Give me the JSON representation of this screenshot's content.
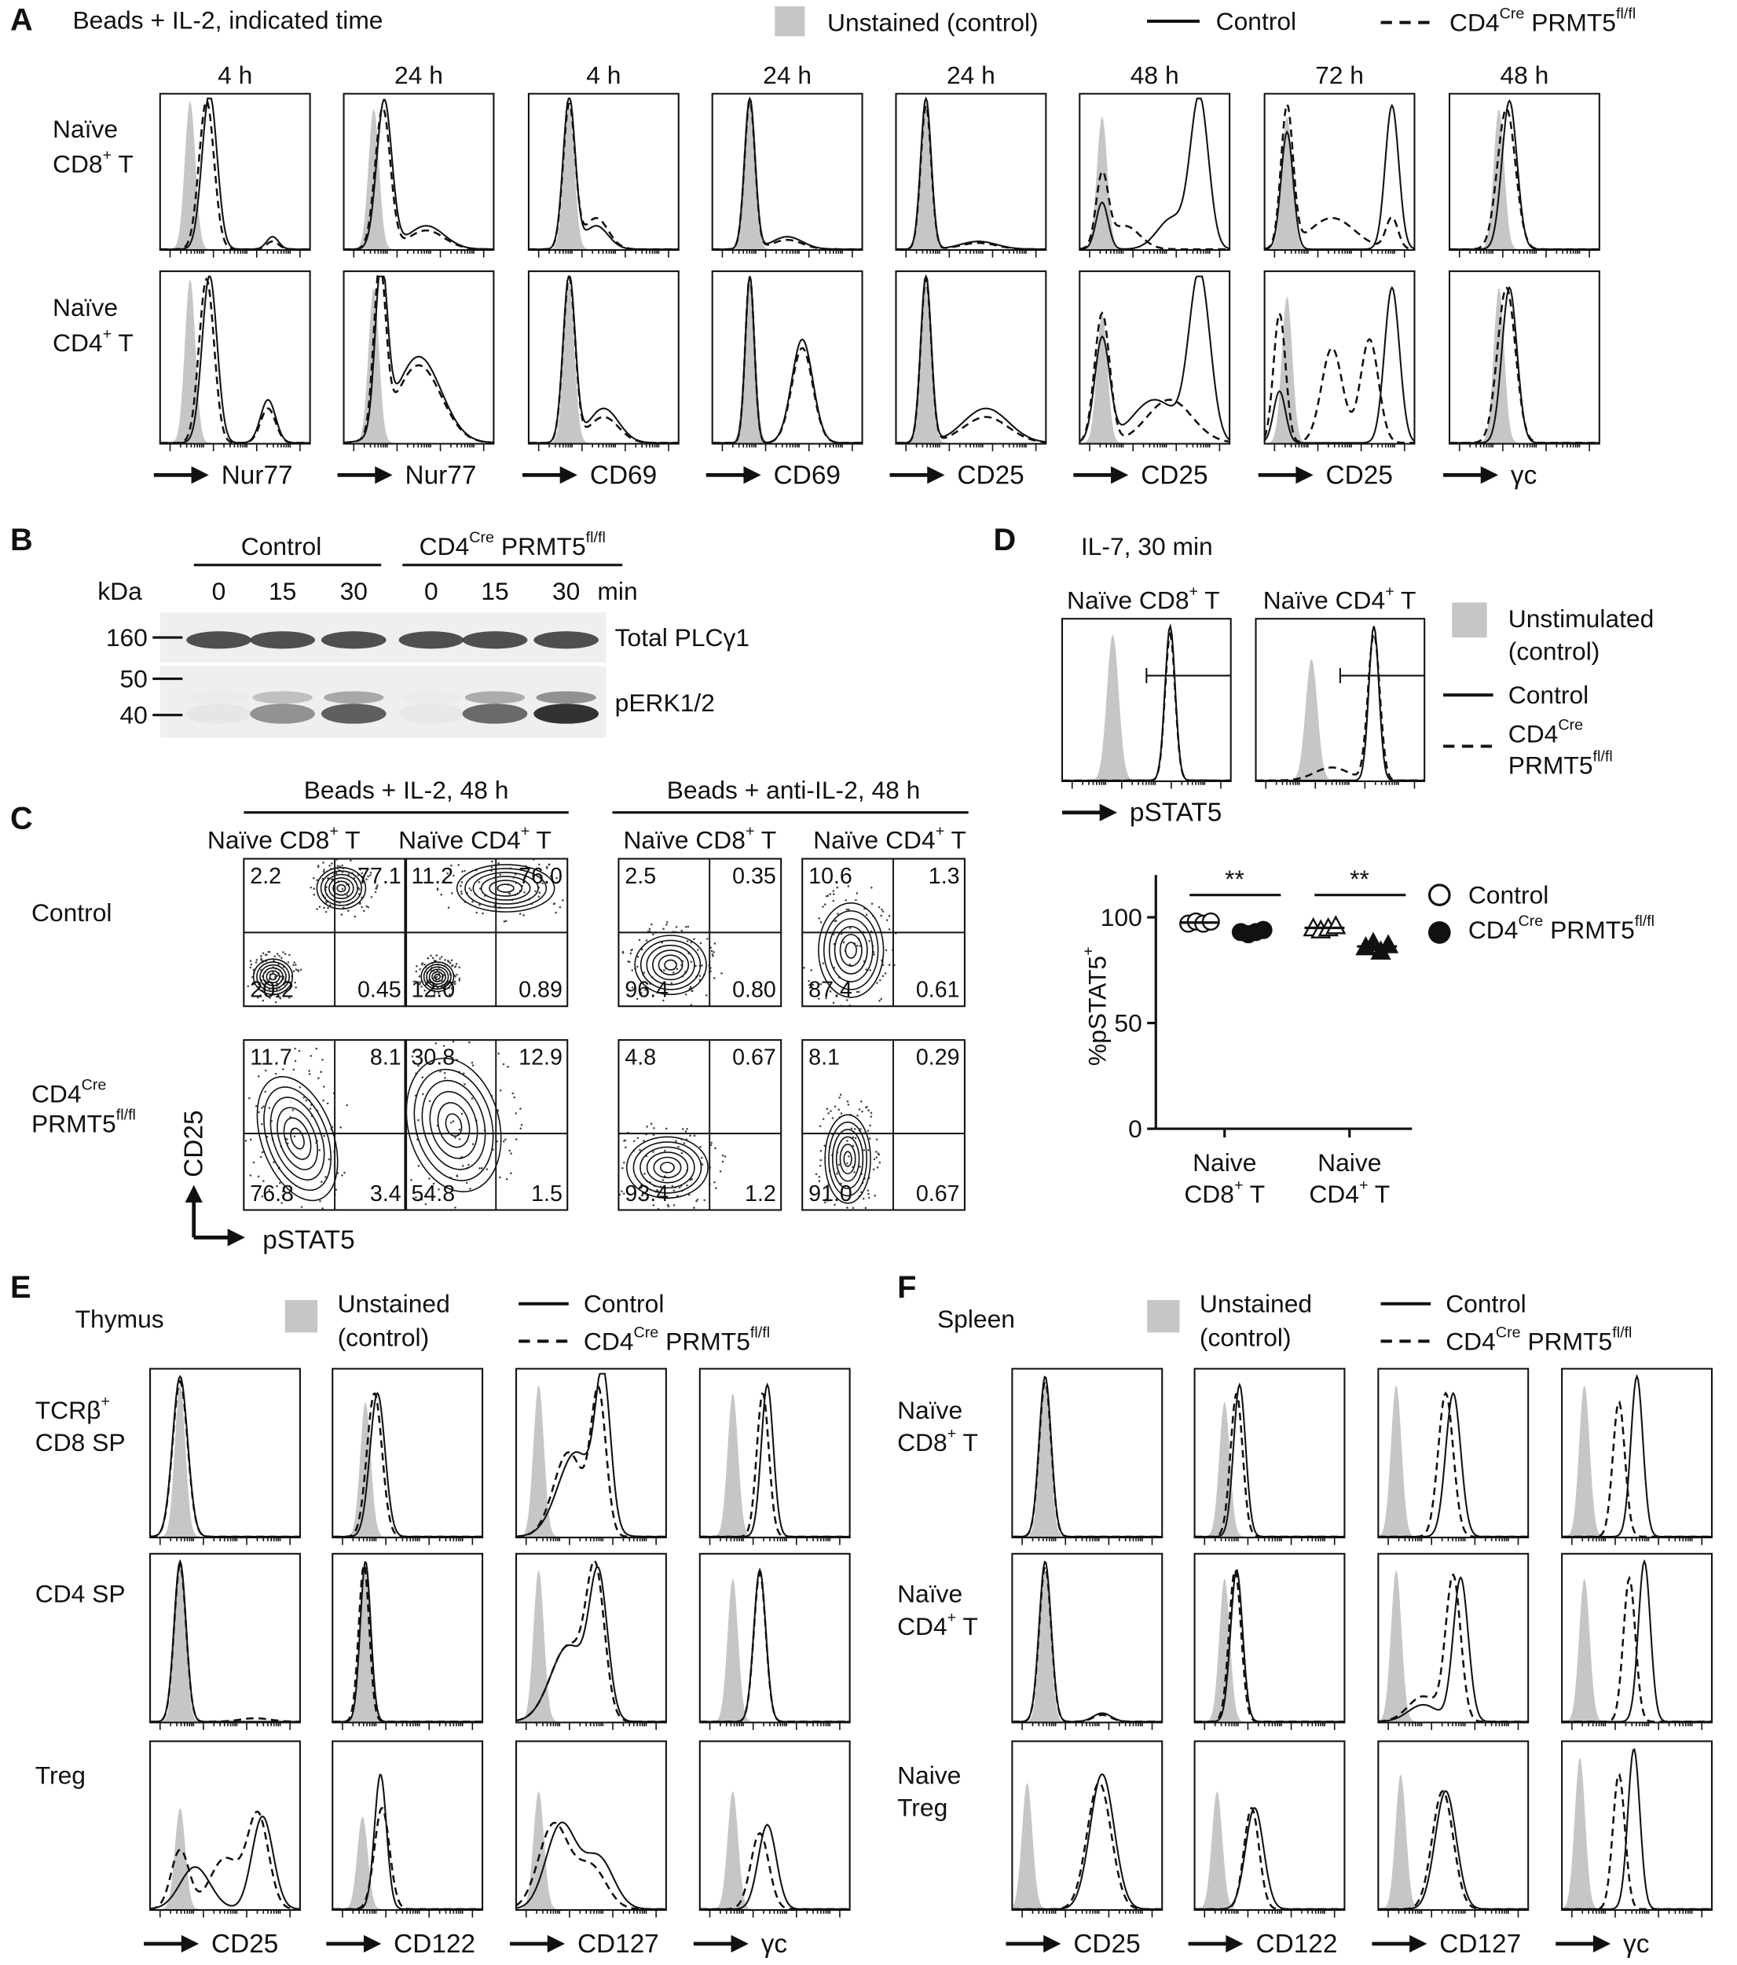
{
  "panel_a": {
    "label": "A",
    "title": "Beads + IL-2, indicated time",
    "legend": {
      "unstained": "Unstained (control)",
      "control": "Control",
      "knockout": [
        "CD4",
        "Cre",
        " PRMT5",
        "fl/fl"
      ]
    },
    "rows": [
      [
        [
          "Naïve"
        ],
        [
          "CD8",
          "+",
          " T"
        ]
      ],
      [
        [
          "Naïve"
        ],
        [
          "CD4",
          "+",
          " T"
        ]
      ]
    ],
    "columns": [
      {
        "time": "4 h",
        "marker": "Nur77"
      },
      {
        "time": "24 h",
        "marker": "Nur77"
      },
      {
        "time": "4 h",
        "marker": "CD69"
      },
      {
        "time": "24 h",
        "marker": "CD69"
      },
      {
        "time": "24 h",
        "marker": "CD25"
      },
      {
        "time": "48 h",
        "marker": "CD25"
      },
      {
        "time": "72 h",
        "marker": "CD25"
      },
      {
        "time": "48 h",
        "marker": "γc"
      }
    ]
  },
  "panel_b": {
    "label": "B",
    "groups": [
      "Control",
      [
        "CD4",
        "Cre",
        " PRMT5",
        "fl/fl"
      ]
    ],
    "unit": "kDa",
    "time_unit": "min",
    "lanes": [
      0,
      15,
      30,
      0,
      15,
      30
    ],
    "mw": [
      160,
      50,
      40
    ],
    "proteins": [
      "Total PLCγ1",
      "pERK1/2"
    ]
  },
  "panel_c": {
    "label": "C",
    "conditions": [
      "Beads + IL-2, 48 h",
      "Beads + anti-IL-2, 48 h"
    ],
    "cells": [
      [
        "Naïve CD8",
        "+",
        " T"
      ],
      [
        "Naïve CD4",
        "+",
        " T"
      ],
      [
        "Naïve CD8",
        "+",
        " T"
      ],
      [
        "Naïve CD4",
        "+",
        " T"
      ]
    ],
    "rows": [
      [
        [
          "Control"
        ]
      ],
      [
        [
          "CD4",
          "Cre"
        ],
        [
          "PRMT5",
          "fl/fl"
        ]
      ]
    ],
    "y_axis": "CD25",
    "x_axis": "pSTAT5",
    "quadrants": [
      [
        [
          "2.2",
          "77.1",
          "20.2",
          "0.45"
        ],
        [
          "11.2",
          "76.0",
          "12.0",
          "0.89"
        ],
        [
          "2.5",
          "0.35",
          "96.4",
          "0.80"
        ],
        [
          "10.6",
          "1.3",
          "87.4",
          "0.61"
        ]
      ],
      [
        [
          "11.7",
          "8.1",
          "76.8",
          "3.4"
        ],
        [
          "30.8",
          "12.9",
          "54.8",
          "1.5"
        ],
        [
          "4.8",
          "0.67",
          "93.4",
          "1.2"
        ],
        [
          "8.1",
          "0.29",
          "91.0",
          "0.67"
        ]
      ]
    ]
  },
  "panel_d": {
    "label": "D",
    "title": "IL-7, 30 min",
    "cells": [
      [
        "Naïve CD8",
        "+",
        " T"
      ],
      [
        "Naïve CD4",
        "+",
        " T"
      ]
    ],
    "x_axis": "pSTAT5",
    "legend": {
      "unstimulated": [
        [
          "Unstimulated"
        ],
        [
          "(control)"
        ]
      ],
      "control": "Control",
      "knockout": [
        [
          "CD4",
          "Cre"
        ],
        [
          "PRMT5",
          "fl/fl"
        ]
      ]
    },
    "dot_plot": {
      "type": "scatter",
      "y_label": [
        "%pSTAT5",
        "+"
      ],
      "ylim": [
        0,
        120
      ],
      "yticks": [
        0,
        50,
        100
      ],
      "categories": [
        [
          [
            "Naive"
          ],
          [
            "CD8",
            "+",
            " T"
          ]
        ],
        [
          [
            "Naive"
          ],
          [
            "CD4",
            "+",
            " T"
          ]
        ]
      ],
      "significance": [
        "**",
        "**"
      ],
      "legend": [
        "Control",
        [
          "CD4",
          "Cre",
          " PRMT5",
          "fl/fl"
        ]
      ],
      "groups": [
        {
          "control": [
            97,
            98,
            97,
            98
          ],
          "knockout": [
            93,
            92,
            93,
            94
          ]
        },
        {
          "control": [
            95,
            94,
            95,
            96
          ],
          "knockout": [
            86,
            88,
            84,
            87
          ]
        }
      ]
    }
  },
  "panel_e": {
    "label": "E",
    "tissue": "Thymus",
    "legend": {
      "unstained": [
        [
          "Unstained"
        ],
        [
          "(control)"
        ]
      ],
      "control": "Control",
      "knockout": [
        "CD4",
        "Cre",
        " PRMT5",
        "fl/fl"
      ]
    },
    "rows": [
      [
        [
          "TCRβ",
          "+"
        ],
        [
          "CD8 SP"
        ]
      ],
      [
        [
          "CD4 SP"
        ]
      ],
      [
        [
          "Treg"
        ]
      ]
    ],
    "markers": [
      "CD25",
      "CD122",
      "CD127",
      "γc"
    ]
  },
  "panel_f": {
    "label": "F",
    "tissue": "Spleen",
    "legend": {
      "unstained": [
        [
          "Unstained"
        ],
        [
          "(control)"
        ]
      ],
      "control": "Control",
      "knockout": [
        "CD4",
        "Cre",
        " PRMT5",
        "fl/fl"
      ]
    },
    "rows": [
      [
        [
          "Naïve"
        ],
        [
          "CD8",
          "+",
          " T"
        ]
      ],
      [
        [
          "Naïve"
        ],
        [
          "CD4",
          "+",
          " T"
        ]
      ],
      [
        [
          "Naive"
        ],
        [
          "Treg"
        ]
      ]
    ],
    "markers": [
      "CD25",
      "CD122",
      "CD127",
      "γc"
    ]
  }
}
